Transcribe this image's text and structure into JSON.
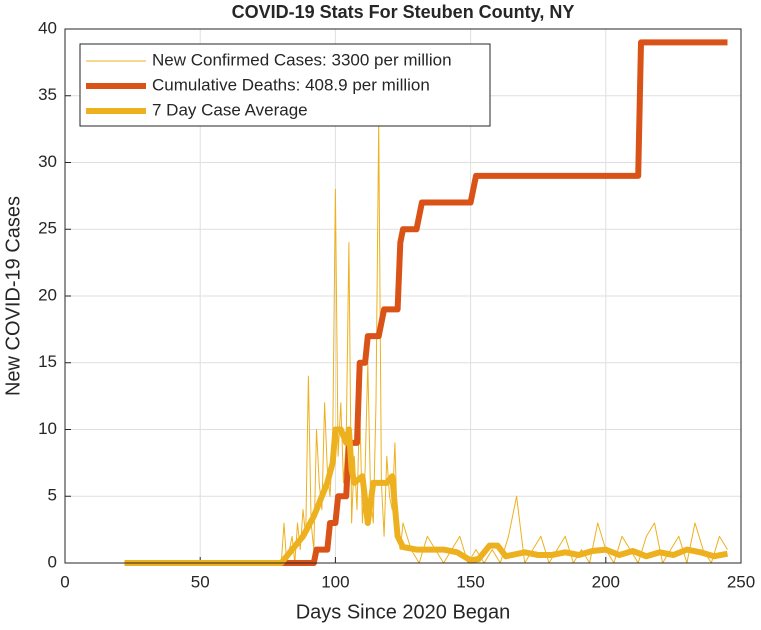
{
  "chart_data": {
    "type": "line",
    "title": "COVID-19 Stats For Steuben County, NY",
    "x_label": "Days Since 2020 Began",
    "y_label": "New COVID-19 Cases",
    "xlim": [
      0,
      250
    ],
    "ylim": [
      0,
      40
    ],
    "xticks": [
      0,
      50,
      100,
      150,
      200,
      250
    ],
    "yticks": [
      0,
      5,
      10,
      15,
      20,
      25,
      30,
      35,
      40
    ],
    "grid": true,
    "legend": "top-left",
    "series": [
      {
        "name": "New Confirmed Cases: 3300 per million",
        "color": "#EDB120",
        "line_width": 1,
        "x": [
          22,
          79,
          80,
          81,
          82,
          83,
          84,
          85,
          86,
          87,
          88,
          89,
          90,
          91,
          92,
          93,
          94,
          95,
          96,
          97,
          98,
          99,
          100,
          101,
          102,
          103,
          104,
          105,
          106,
          107,
          108,
          109,
          110,
          111,
          112,
          113,
          114,
          115,
          116,
          117,
          118,
          119,
          120,
          121,
          122,
          123,
          124,
          125,
          128,
          131,
          134,
          137,
          140,
          143,
          146,
          149,
          152,
          155,
          158,
          161,
          164,
          167,
          170,
          173,
          176,
          179,
          182,
          185,
          188,
          191,
          194,
          197,
          200,
          203,
          206,
          209,
          212,
          215,
          218,
          221,
          224,
          227,
          230,
          233,
          236,
          239,
          242,
          245
        ],
        "values": [
          0,
          0,
          0,
          3,
          0,
          1,
          2,
          0,
          3,
          1,
          4,
          2,
          14,
          3,
          1,
          10,
          6,
          4,
          12,
          7,
          5,
          9,
          28,
          8,
          12,
          6,
          9,
          24,
          3,
          8,
          4,
          12,
          3,
          7,
          15,
          5,
          3,
          12,
          33,
          6,
          2,
          8,
          5,
          4,
          9,
          2,
          1,
          3,
          1,
          0,
          2,
          1,
          0,
          1,
          2,
          0,
          1,
          0,
          1,
          0,
          2,
          5,
          0,
          1,
          2,
          0,
          1,
          2,
          0,
          1,
          0,
          3,
          1,
          0,
          2,
          1,
          0,
          2,
          3,
          0,
          1,
          2,
          0,
          3,
          1,
          0,
          2,
          1
        ]
      },
      {
        "name": "Cumulative Deaths: 408.9 per million",
        "color": "#D95319",
        "line_width": 6,
        "x": [
          22,
          92,
          93,
          97,
          98,
          100,
          101,
          104,
          105,
          108,
          109,
          111,
          112,
          116,
          118,
          123,
          124,
          125,
          130,
          132,
          150,
          152,
          212,
          213,
          245
        ],
        "values": [
          0,
          0,
          1,
          1,
          3,
          3,
          5,
          5,
          9,
          9,
          15,
          15,
          17,
          17,
          19,
          19,
          24,
          25,
          25,
          27,
          27,
          29,
          29,
          39,
          39
        ]
      },
      {
        "name": "7 Day Case Average",
        "color": "#EDB120",
        "line_width": 6,
        "x": [
          22,
          80,
          84,
          88,
          92,
          95,
          97,
          99,
          100,
          102,
          104,
          105,
          106,
          107,
          110,
          112,
          114,
          116,
          119,
          121,
          123,
          125,
          130,
          140,
          145,
          150,
          153,
          157,
          160,
          163,
          170,
          175,
          180,
          185,
          190,
          195,
          200,
          205,
          210,
          215,
          220,
          225,
          230,
          235,
          240,
          245
        ],
        "values": [
          0,
          0,
          1,
          2,
          3.5,
          5,
          6,
          7.5,
          10,
          10,
          9,
          10,
          7,
          6,
          6.5,
          3,
          6,
          6,
          6,
          6.5,
          2,
          1.2,
          1,
          1,
          0.8,
          0.2,
          0.3,
          1.3,
          1.3,
          0.5,
          0.8,
          0.6,
          0.6,
          0.8,
          0.6,
          0.9,
          1,
          0.6,
          0.9,
          0.5,
          0.8,
          0.6,
          1,
          0.8,
          0.5,
          0.7
        ]
      }
    ]
  }
}
